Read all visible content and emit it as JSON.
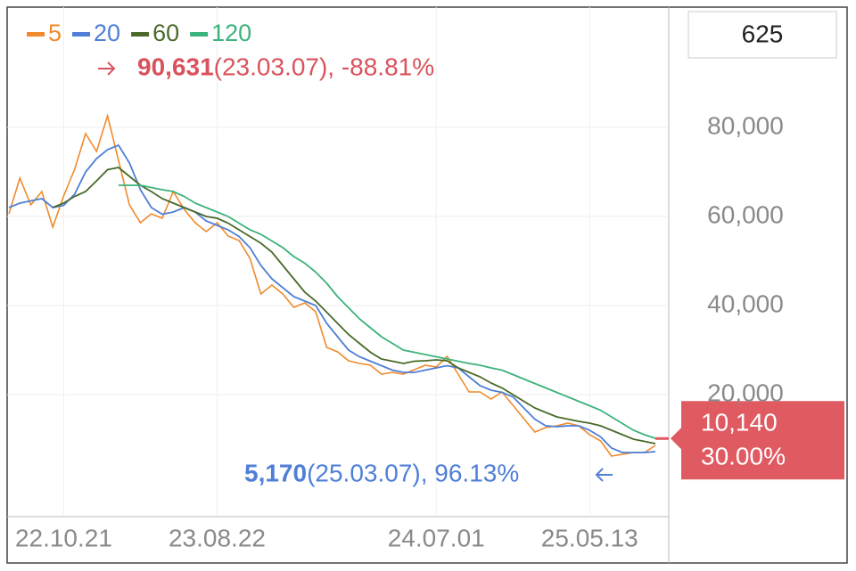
{
  "chart_data": {
    "type": "line",
    "categories": [
      null,
      null,
      null,
      null,
      null,
      "22.10.21",
      null,
      null,
      null,
      null,
      null,
      null,
      null,
      null,
      null,
      null,
      null,
      null,
      null,
      "23.08.22",
      null,
      null,
      null,
      null,
      null,
      null,
      null,
      null,
      null,
      null,
      null,
      null,
      null,
      null,
      null,
      null,
      null,
      null,
      null,
      "24.07.01",
      null,
      null,
      null,
      null,
      null,
      null,
      null,
      null,
      null,
      null,
      null,
      null,
      null,
      "25.05.13",
      null,
      null,
      null,
      null,
      null,
      null
    ],
    "series": [
      {
        "name": "5",
        "color": "#f08a2c",
        "values": [
          60600,
          68600,
          62600,
          65600,
          57600,
          64600,
          70600,
          78600,
          74600,
          82600,
          72600,
          62600,
          58600,
          60600,
          59600,
          65600,
          61600,
          58600,
          56600,
          58600,
          55600,
          54600,
          50600,
          42600,
          44600,
          42600,
          39600,
          40600,
          38600,
          30600,
          29600,
          27600,
          27000,
          26600,
          24600,
          25000,
          24600,
          25600,
          26600,
          26200,
          28600,
          24600,
          20600,
          20600,
          19000,
          20600,
          17600,
          14600,
          11600,
          12600,
          13000,
          13600,
          13000,
          11000,
          9600,
          6200,
          6600,
          7000,
          7000,
          8600
        ]
      },
      {
        "name": "20",
        "color": "#4f7fd6",
        "values": [
          62000,
          63000,
          63500,
          64000,
          62000,
          62500,
          65000,
          70000,
          73000,
          75000,
          76000,
          72000,
          66000,
          62000,
          60500,
          61000,
          62000,
          61000,
          59000,
          58000,
          57000,
          55500,
          53000,
          49000,
          46000,
          44000,
          42000,
          41000,
          40000,
          36000,
          33000,
          30000,
          28500,
          27500,
          26500,
          25500,
          25000,
          25000,
          25500,
          26000,
          26500,
          26000,
          24000,
          22000,
          21000,
          20500,
          19500,
          17000,
          14500,
          13000,
          12800,
          13000,
          13000,
          12000,
          10500,
          8000,
          7000,
          7000,
          7000,
          7200
        ]
      },
      {
        "name": "60",
        "color": "#4a6a2a",
        "values": [
          null,
          null,
          null,
          null,
          62000,
          63000,
          64500,
          65600,
          68000,
          70500,
          71000,
          69000,
          67000,
          65600,
          64000,
          63000,
          62000,
          61000,
          60000,
          59600,
          58500,
          57000,
          55500,
          54000,
          52000,
          49000,
          46000,
          43000,
          41000,
          38500,
          36000,
          33500,
          31500,
          29500,
          28000,
          27500,
          27000,
          27500,
          27600,
          27800,
          27600,
          26000,
          25000,
          24000,
          22600,
          21500,
          20000,
          18500,
          17000,
          16000,
          15000,
          14500,
          14000,
          13600,
          13000,
          12000,
          11000,
          10000,
          9500,
          9000
        ]
      },
      {
        "name": "120",
        "color": "#3cb37a",
        "values": [
          null,
          null,
          null,
          null,
          null,
          null,
          null,
          null,
          null,
          null,
          67000,
          67000,
          67000,
          66500,
          66000,
          65600,
          64500,
          63000,
          62000,
          61000,
          60000,
          58500,
          57000,
          56000,
          54500,
          53000,
          51000,
          49500,
          47500,
          45000,
          42000,
          39500,
          37000,
          35000,
          33000,
          31500,
          30000,
          29500,
          29000,
          28500,
          28000,
          27500,
          27000,
          26600,
          26000,
          25500,
          24500,
          23500,
          22500,
          21500,
          20500,
          19500,
          18500,
          17500,
          16500,
          15000,
          13500,
          12000,
          11000,
          10200
        ]
      }
    ],
    "ylim": [
      -7400,
      106600
    ],
    "yticks": [
      {
        "value": 20000,
        "label": "20,000"
      },
      {
        "value": 40000,
        "label": "40,000"
      },
      {
        "value": 60000,
        "label": "60,000"
      },
      {
        "value": 80000,
        "label": "80,000"
      }
    ],
    "grid": true,
    "period_box": "625",
    "high": {
      "value": 90631,
      "label": "90,631",
      "detail": "(23.03.07), -88.81%",
      "color": "#d9535c"
    },
    "low": {
      "value": 5170,
      "label": "5,170",
      "detail": "(25.03.07), 96.13%",
      "color": "#4f7fd6"
    },
    "current": {
      "value": 10140,
      "label": "10,140",
      "change": "30.00%",
      "color": "#e05a62"
    }
  }
}
